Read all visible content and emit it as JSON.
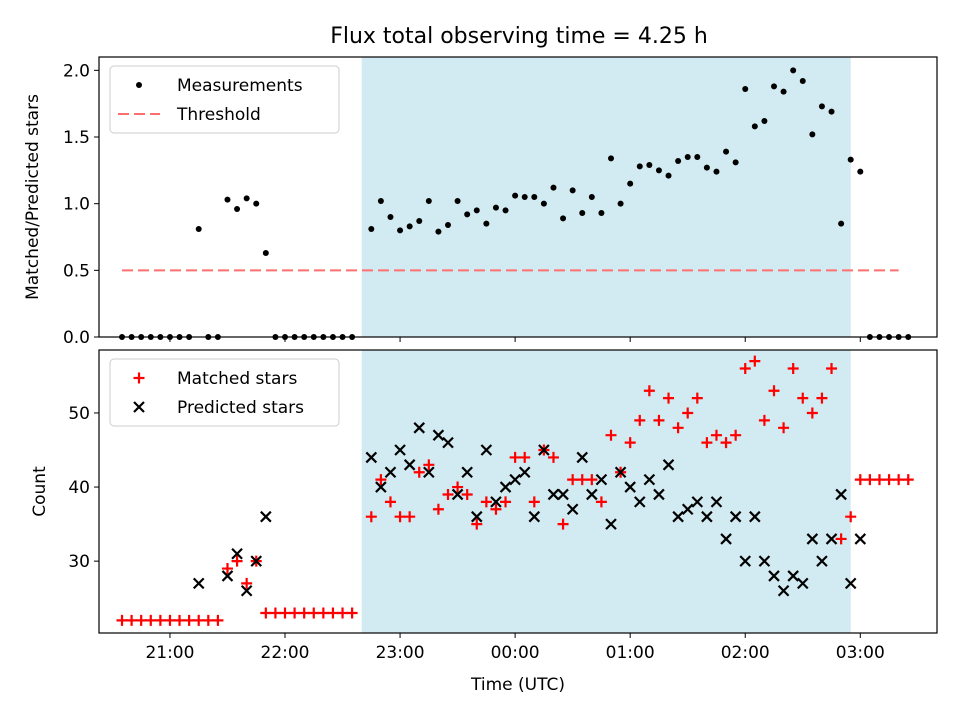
{
  "title": "Flux total observing time = 4.25 h",
  "colors": {
    "observing_span": "#add8e6",
    "threshold": "#ff6f6f",
    "measurements": "#000000",
    "matched": "#ff0000",
    "predicted": "#000000"
  },
  "chart_data": [
    {
      "type": "scatter",
      "panel": "top",
      "title": "Flux total observing time = 4.25 h",
      "xlabel": "",
      "ylabel": "Matched/Predicted stars",
      "xlim": [
        "20:23",
        "03:40"
      ],
      "ylim": [
        0,
        2.1
      ],
      "x_ticks": [
        "21:00",
        "22:00",
        "23:00",
        "00:00",
        "01:00",
        "02:00",
        "03:00"
      ],
      "y_ticks": [
        "0.0",
        "0.5",
        "1.0",
        "1.5",
        "2.0"
      ],
      "shaded_span": [
        "22:40",
        "02:55"
      ],
      "legend": {
        "position": "top-left",
        "entries": [
          "Measurements",
          "Threshold"
        ]
      },
      "threshold": {
        "name": "Threshold",
        "y": 0.5,
        "x_range": [
          "20:35",
          "03:20"
        ]
      },
      "series": [
        {
          "name": "Measurements",
          "marker": "dot",
          "points": [
            [
              "20:35",
              0
            ],
            [
              "20:40",
              0
            ],
            [
              "20:45",
              0
            ],
            [
              "20:50",
              0
            ],
            [
              "20:55",
              0
            ],
            [
              "21:00",
              0
            ],
            [
              "21:05",
              0
            ],
            [
              "21:10",
              0
            ],
            [
              "21:15",
              0.81
            ],
            [
              "21:20",
              0
            ],
            [
              "21:25",
              0
            ],
            [
              "21:30",
              1.03
            ],
            [
              "21:35",
              0.96
            ],
            [
              "21:40",
              1.04
            ],
            [
              "21:45",
              1.0
            ],
            [
              "21:50",
              0.63
            ],
            [
              "21:55",
              0
            ],
            [
              "22:00",
              0
            ],
            [
              "22:05",
              0
            ],
            [
              "22:10",
              0
            ],
            [
              "22:15",
              0
            ],
            [
              "22:20",
              0
            ],
            [
              "22:25",
              0
            ],
            [
              "22:30",
              0
            ],
            [
              "22:35",
              0
            ],
            [
              "22:45",
              0.81
            ],
            [
              "22:50",
              1.02
            ],
            [
              "22:55",
              0.9
            ],
            [
              "23:00",
              0.8
            ],
            [
              "23:05",
              0.83
            ],
            [
              "23:10",
              0.87
            ],
            [
              "23:15",
              1.02
            ],
            [
              "23:20",
              0.79
            ],
            [
              "23:25",
              0.84
            ],
            [
              "23:30",
              1.02
            ],
            [
              "23:35",
              0.92
            ],
            [
              "23:40",
              0.95
            ],
            [
              "23:45",
              0.85
            ],
            [
              "23:50",
              0.97
            ],
            [
              "23:55",
              0.95
            ],
            [
              "00:00",
              1.06
            ],
            [
              "00:05",
              1.05
            ],
            [
              "00:10",
              1.05
            ],
            [
              "00:15",
              1.0
            ],
            [
              "00:20",
              1.12
            ],
            [
              "00:25",
              0.89
            ],
            [
              "00:30",
              1.1
            ],
            [
              "00:35",
              0.93
            ],
            [
              "00:40",
              1.05
            ],
            [
              "00:45",
              0.93
            ],
            [
              "00:50",
              1.34
            ],
            [
              "00:55",
              1.0
            ],
            [
              "01:00",
              1.15
            ],
            [
              "01:05",
              1.28
            ],
            [
              "01:10",
              1.29
            ],
            [
              "01:15",
              1.25
            ],
            [
              "01:20",
              1.21
            ],
            [
              "01:25",
              1.32
            ],
            [
              "01:30",
              1.35
            ],
            [
              "01:35",
              1.35
            ],
            [
              "01:40",
              1.27
            ],
            [
              "01:45",
              1.24
            ],
            [
              "01:50",
              1.39
            ],
            [
              "01:55",
              1.31
            ],
            [
              "02:00",
              1.86
            ],
            [
              "02:05",
              1.58
            ],
            [
              "02:10",
              1.62
            ],
            [
              "02:15",
              1.88
            ],
            [
              "02:20",
              1.84
            ],
            [
              "02:25",
              2.0
            ],
            [
              "02:30",
              1.92
            ],
            [
              "02:35",
              1.52
            ],
            [
              "02:40",
              1.73
            ],
            [
              "02:45",
              1.69
            ],
            [
              "02:50",
              0.85
            ],
            [
              "02:55",
              1.33
            ],
            [
              "03:00",
              1.24
            ],
            [
              "03:05",
              0
            ],
            [
              "03:10",
              0
            ],
            [
              "03:15",
              0
            ],
            [
              "03:20",
              0
            ],
            [
              "03:25",
              0
            ]
          ]
        }
      ]
    },
    {
      "type": "scatter",
      "panel": "bottom",
      "xlabel": "Time (UTC)",
      "ylabel": "Count",
      "xlim": [
        "20:23",
        "03:40"
      ],
      "ylim": [
        20.3,
        58.5
      ],
      "x_ticks": [
        "21:00",
        "22:00",
        "23:00",
        "00:00",
        "01:00",
        "02:00",
        "03:00"
      ],
      "y_ticks": [
        "30",
        "40",
        "50"
      ],
      "shaded_span": [
        "22:40",
        "02:55"
      ],
      "legend": {
        "position": "top-left",
        "entries": [
          "Matched stars",
          "Predicted stars"
        ]
      },
      "series": [
        {
          "name": "Matched stars",
          "marker": "plus",
          "points": [
            [
              "20:35",
              22
            ],
            [
              "20:40",
              22
            ],
            [
              "20:45",
              22
            ],
            [
              "20:50",
              22
            ],
            [
              "20:55",
              22
            ],
            [
              "21:00",
              22
            ],
            [
              "21:05",
              22
            ],
            [
              "21:10",
              22
            ],
            [
              "21:15",
              22
            ],
            [
              "21:20",
              22
            ],
            [
              "21:25",
              22
            ],
            [
              "21:30",
              29
            ],
            [
              "21:35",
              30
            ],
            [
              "21:40",
              27
            ],
            [
              "21:45",
              30
            ],
            [
              "21:50",
              23
            ],
            [
              "21:55",
              23
            ],
            [
              "22:00",
              23
            ],
            [
              "22:05",
              23
            ],
            [
              "22:10",
              23
            ],
            [
              "22:15",
              23
            ],
            [
              "22:20",
              23
            ],
            [
              "22:25",
              23
            ],
            [
              "22:30",
              23
            ],
            [
              "22:35",
              23
            ],
            [
              "22:45",
              36
            ],
            [
              "22:50",
              41
            ],
            [
              "22:55",
              38
            ],
            [
              "23:00",
              36
            ],
            [
              "23:05",
              36
            ],
            [
              "23:10",
              42
            ],
            [
              "23:15",
              43
            ],
            [
              "23:20",
              37
            ],
            [
              "23:25",
              39
            ],
            [
              "23:30",
              40
            ],
            [
              "23:35",
              39
            ],
            [
              "23:40",
              35
            ],
            [
              "23:45",
              38
            ],
            [
              "23:50",
              37
            ],
            [
              "23:55",
              38
            ],
            [
              "00:00",
              44
            ],
            [
              "00:05",
              44
            ],
            [
              "00:10",
              38
            ],
            [
              "00:15",
              45
            ],
            [
              "00:20",
              44
            ],
            [
              "00:25",
              35
            ],
            [
              "00:30",
              41
            ],
            [
              "00:35",
              41
            ],
            [
              "00:40",
              41
            ],
            [
              "00:45",
              38
            ],
            [
              "00:50",
              47
            ],
            [
              "00:55",
              42
            ],
            [
              "01:00",
              46
            ],
            [
              "01:05",
              49
            ],
            [
              "01:10",
              53
            ],
            [
              "01:15",
              49
            ],
            [
              "01:20",
              52
            ],
            [
              "01:25",
              48
            ],
            [
              "01:30",
              50
            ],
            [
              "01:35",
              52
            ],
            [
              "01:40",
              46
            ],
            [
              "01:45",
              47
            ],
            [
              "01:50",
              46
            ],
            [
              "01:55",
              47
            ],
            [
              "02:00",
              56
            ],
            [
              "02:05",
              57
            ],
            [
              "02:10",
              49
            ],
            [
              "02:15",
              53
            ],
            [
              "02:20",
              48
            ],
            [
              "02:25",
              56
            ],
            [
              "02:30",
              52
            ],
            [
              "02:35",
              50
            ],
            [
              "02:40",
              52
            ],
            [
              "02:45",
              56
            ],
            [
              "02:50",
              33
            ],
            [
              "02:55",
              36
            ],
            [
              "03:00",
              41
            ],
            [
              "03:05",
              41
            ],
            [
              "03:10",
              41
            ],
            [
              "03:15",
              41
            ],
            [
              "03:20",
              41
            ],
            [
              "03:25",
              41
            ]
          ]
        },
        {
          "name": "Predicted stars",
          "marker": "x",
          "points": [
            [
              "21:15",
              27
            ],
            [
              "21:30",
              28
            ],
            [
              "21:35",
              31
            ],
            [
              "21:40",
              26
            ],
            [
              "21:45",
              30
            ],
            [
              "21:50",
              36
            ],
            [
              "22:45",
              44
            ],
            [
              "22:50",
              40
            ],
            [
              "22:55",
              42
            ],
            [
              "23:00",
              45
            ],
            [
              "23:05",
              43
            ],
            [
              "23:10",
              48
            ],
            [
              "23:15",
              42
            ],
            [
              "23:20",
              47
            ],
            [
              "23:25",
              46
            ],
            [
              "23:30",
              39
            ],
            [
              "23:35",
              42
            ],
            [
              "23:40",
              36
            ],
            [
              "23:45",
              45
            ],
            [
              "23:50",
              38
            ],
            [
              "23:55",
              40
            ],
            [
              "00:00",
              41
            ],
            [
              "00:05",
              42
            ],
            [
              "00:10",
              36
            ],
            [
              "00:15",
              45
            ],
            [
              "00:20",
              39
            ],
            [
              "00:25",
              39
            ],
            [
              "00:30",
              37
            ],
            [
              "00:35",
              44
            ],
            [
              "00:40",
              39
            ],
            [
              "00:45",
              41
            ],
            [
              "00:50",
              35
            ],
            [
              "00:55",
              42
            ],
            [
              "01:00",
              40
            ],
            [
              "01:05",
              38
            ],
            [
              "01:10",
              41
            ],
            [
              "01:15",
              39
            ],
            [
              "01:20",
              43
            ],
            [
              "01:25",
              36
            ],
            [
              "01:30",
              37
            ],
            [
              "01:35",
              38
            ],
            [
              "01:40",
              36
            ],
            [
              "01:45",
              38
            ],
            [
              "01:50",
              33
            ],
            [
              "01:55",
              36
            ],
            [
              "02:00",
              30
            ],
            [
              "02:05",
              36
            ],
            [
              "02:10",
              30
            ],
            [
              "02:15",
              28
            ],
            [
              "02:20",
              26
            ],
            [
              "02:25",
              28
            ],
            [
              "02:30",
              27
            ],
            [
              "02:35",
              33
            ],
            [
              "02:40",
              30
            ],
            [
              "02:45",
              33
            ],
            [
              "02:50",
              39
            ],
            [
              "02:55",
              27
            ],
            [
              "03:00",
              33
            ]
          ]
        }
      ]
    }
  ]
}
